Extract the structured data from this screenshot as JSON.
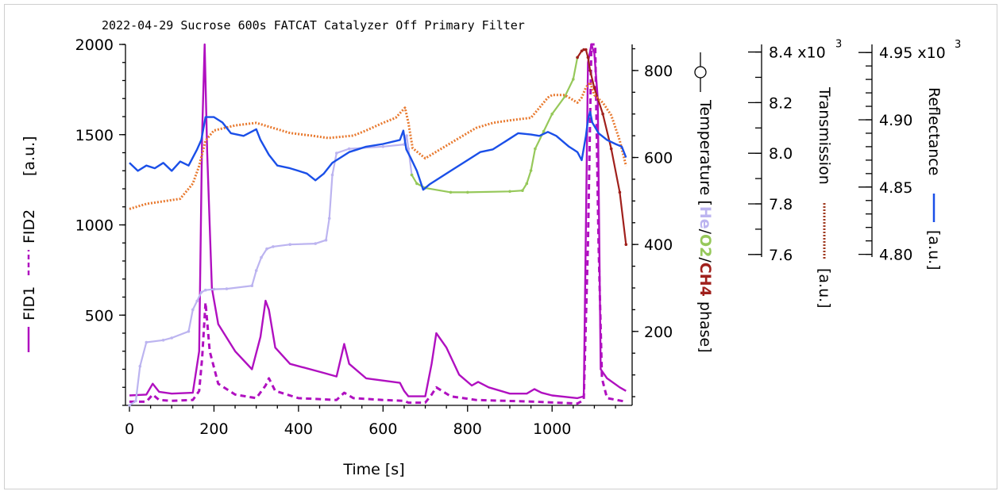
{
  "chart_data": {
    "type": "line",
    "title": "2022-04-29 Sucrose 600s FATCAT Catalyzer Off Primary Filter",
    "xlabel": "Time [s]",
    "xlim": [
      0,
      1180
    ],
    "x_ticks": [
      "0",
      "200",
      "400",
      "600",
      "800",
      "1000"
    ],
    "left_axis": {
      "label_fid1": "FID1",
      "label_fid2": "FID2",
      "label_unit": "[a.u.]",
      "ylim": [
        0,
        2000
      ],
      "ticks": [
        "500",
        "1000",
        "1500",
        "2000"
      ]
    },
    "temperature_axis": {
      "label": "Temperature [",
      "phase_he": "He",
      "slash1": "/",
      "phase_o2": "O2",
      "slash2": "/",
      "phase_ch4": "CH4",
      "label_end": " phase]",
      "ylim": [
        30,
        860
      ],
      "ticks": [
        "200",
        "400",
        "600",
        "800"
      ]
    },
    "transmission_axis": {
      "label": "Transmission",
      "unit": "[a.u.]",
      "ylim": [
        7.59,
        8.43
      ],
      "ticks": [
        "7.6",
        "7.8",
        "8.0",
        "8.2",
        "8.4 x10"
      ],
      "exponent": "3"
    },
    "reflectance_axis": {
      "label": "Reflectance",
      "unit": "[a.u.]",
      "ylim": [
        4.798,
        4.956
      ],
      "ticks": [
        "4.80",
        "4.85",
        "4.90",
        "4.95 x10"
      ],
      "exponent": "3"
    },
    "series": [
      {
        "name": "FID1",
        "axis": "left",
        "color": "#b010c0",
        "style": "solid",
        "x": [
          0,
          40,
          55,
          70,
          100,
          150,
          165,
          172,
          178,
          184,
          195,
          210,
          250,
          290,
          310,
          322,
          330,
          345,
          380,
          460,
          490,
          508,
          520,
          560,
          640,
          650,
          660,
          700,
          715,
          726,
          750,
          780,
          810,
          825,
          850,
          900,
          940,
          958,
          975,
          1000,
          1060,
          1075,
          1085,
          1093,
          1100,
          1108,
          1115,
          1130,
          1160,
          1175
        ],
        "y": [
          55,
          60,
          120,
          75,
          65,
          70,
          300,
          1500,
          2000,
          1400,
          650,
          450,
          300,
          200,
          380,
          580,
          530,
          320,
          230,
          180,
          160,
          340,
          230,
          150,
          125,
          80,
          50,
          50,
          230,
          400,
          320,
          170,
          110,
          130,
          100,
          65,
          65,
          90,
          70,
          55,
          40,
          50,
          1900,
          2000,
          1950,
          1700,
          200,
          150,
          100,
          80
        ]
      },
      {
        "name": "FID2",
        "axis": "left",
        "color": "#b010c0",
        "style": "dashed",
        "x": [
          0,
          40,
          55,
          70,
          100,
          150,
          165,
          172,
          180,
          190,
          210,
          250,
          300,
          322,
          330,
          345,
          400,
          490,
          508,
          530,
          600,
          650,
          660,
          700,
          715,
          726,
          760,
          820,
          960,
          1060,
          1075,
          1085,
          1093,
          1102,
          1110,
          1118,
          1130,
          1175
        ],
        "y": [
          20,
          20,
          60,
          30,
          25,
          30,
          80,
          260,
          570,
          300,
          120,
          60,
          40,
          110,
          150,
          80,
          40,
          30,
          70,
          40,
          30,
          25,
          15,
          15,
          60,
          100,
          50,
          30,
          20,
          10,
          30,
          900,
          2000,
          2000,
          900,
          150,
          40,
          20
        ]
      },
      {
        "name": "Temperature",
        "axis": "temperature",
        "color": "#bcb4f0",
        "style": "markers-line",
        "x": [
          0,
          15,
          25,
          40,
          80,
          100,
          140,
          150,
          160,
          170,
          180,
          200,
          230,
          290,
          300,
          312,
          325,
          340,
          380,
          440,
          465,
          473,
          480,
          490,
          520,
          600,
          650,
          656,
          660,
          668,
          680,
          700,
          760,
          800,
          900,
          930,
          940,
          950,
          960,
          980,
          1000,
          1030,
          1050,
          1060,
          1070,
          1075,
          1080,
          1085,
          1090,
          1100,
          1120,
          1140,
          1160,
          1175
        ],
        "y": [
          30,
          40,
          120,
          175,
          180,
          185,
          200,
          250,
          270,
          290,
          295,
          297,
          298,
          305,
          340,
          370,
          390,
          395,
          400,
          402,
          410,
          460,
          560,
          610,
          620,
          625,
          630,
          650,
          620,
          560,
          540,
          530,
          520,
          520,
          522,
          524,
          540,
          570,
          620,
          660,
          700,
          740,
          780,
          830,
          845,
          848,
          848,
          830,
          800,
          760,
          700,
          620,
          520,
          400
        ],
        "segment_colors": [
          {
            "name": "He",
            "color": "#bcb4f0",
            "from_x": 0,
            "to_x": 668
          },
          {
            "name": "O2",
            "color": "#96c85a",
            "from_x": 668,
            "to_x": 1060
          },
          {
            "name": "CH4",
            "color": "#a0201c",
            "from_x": 1060,
            "to_x": 1175
          }
        ]
      },
      {
        "name": "Transmission",
        "axis": "transmission",
        "color": "#e87a30",
        "style": "dotted",
        "x": [
          0,
          20,
          40,
          80,
          120,
          150,
          165,
          180,
          200,
          250,
          300,
          340,
          380,
          430,
          470,
          500,
          530,
          560,
          600,
          630,
          652,
          660,
          670,
          700,
          740,
          780,
          820,
          860,
          900,
          950,
          980,
          990,
          1000,
          1030,
          1040,
          1050,
          1060,
          1070,
          1080,
          1090,
          1100,
          1120,
          1140,
          1160,
          1175
        ],
        "y": [
          7.78,
          7.79,
          7.8,
          7.81,
          7.82,
          7.88,
          7.95,
          8.05,
          8.09,
          8.11,
          8.12,
          8.1,
          8.08,
          8.07,
          8.06,
          8.065,
          8.07,
          8.09,
          8.12,
          8.14,
          8.18,
          8.12,
          8.02,
          7.98,
          8.02,
          8.06,
          8.1,
          8.12,
          8.13,
          8.14,
          8.2,
          8.22,
          8.23,
          8.23,
          8.22,
          8.21,
          8.2,
          8.22,
          8.26,
          8.28,
          8.23,
          8.2,
          8.15,
          8.05,
          7.95
        ]
      },
      {
        "name": "Reflectance",
        "axis": "reflectance",
        "color": "#1a4fe8",
        "style": "solid",
        "x": [
          0,
          20,
          40,
          60,
          80,
          100,
          120,
          140,
          160,
          170,
          180,
          200,
          220,
          240,
          270,
          300,
          310,
          330,
          350,
          380,
          400,
          420,
          440,
          460,
          480,
          500,
          520,
          540,
          560,
          600,
          640,
          648,
          655,
          665,
          680,
          695,
          710,
          730,
          760,
          800,
          830,
          860,
          880,
          900,
          920,
          950,
          970,
          990,
          1010,
          1040,
          1050,
          1060,
          1070,
          1080,
          1085,
          1090,
          1095,
          1110,
          1130,
          1150,
          1165,
          1175
        ],
        "y": [
          4.868,
          4.862,
          4.866,
          4.864,
          4.868,
          4.862,
          4.869,
          4.866,
          4.878,
          4.885,
          4.902,
          4.902,
          4.898,
          4.89,
          4.888,
          4.893,
          4.885,
          4.874,
          4.866,
          4.864,
          4.862,
          4.86,
          4.855,
          4.86,
          4.868,
          4.872,
          4.876,
          4.878,
          4.88,
          4.882,
          4.885,
          4.892,
          4.878,
          4.872,
          4.862,
          4.848,
          4.852,
          4.856,
          4.862,
          4.87,
          4.876,
          4.878,
          4.882,
          4.886,
          4.89,
          4.889,
          4.888,
          4.891,
          4.888,
          4.88,
          4.878,
          4.876,
          4.87,
          4.888,
          4.9,
          4.906,
          4.898,
          4.89,
          4.885,
          4.882,
          4.88,
          4.872
        ]
      }
    ]
  }
}
